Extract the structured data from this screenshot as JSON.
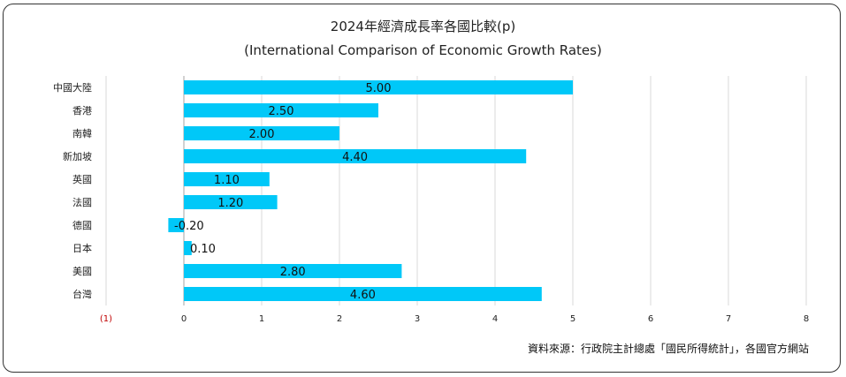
{
  "chart_data": {
    "type": "bar",
    "orientation": "horizontal",
    "title": "2024年經濟成長率各國比較(p)",
    "subtitle": "(International Comparison of Economic Growth Rates)",
    "categories": [
      "中國大陸",
      "香港",
      "南韓",
      "新加坡",
      "英國",
      "法國",
      "德國",
      "日本",
      "美國",
      "台灣"
    ],
    "values": [
      5.0,
      2.5,
      2.0,
      4.4,
      1.1,
      1.2,
      -0.2,
      0.1,
      2.8,
      4.6
    ],
    "value_labels": [
      "5.00",
      "2.50",
      "2.00",
      "4.40",
      "1.10",
      "1.20",
      "-0.20",
      "0.10",
      "2.80",
      "4.60"
    ],
    "xlim": [
      -1,
      8
    ],
    "ticks": [
      {
        "value": -1,
        "label": "(1)"
      },
      {
        "value": 0,
        "label": "0"
      },
      {
        "value": 1,
        "label": "1"
      },
      {
        "value": 2,
        "label": "2"
      },
      {
        "value": 3,
        "label": "3"
      },
      {
        "value": 4,
        "label": "4"
      },
      {
        "value": 5,
        "label": "5"
      },
      {
        "value": 6,
        "label": "6"
      },
      {
        "value": 7,
        "label": "7"
      },
      {
        "value": 8,
        "label": "8"
      }
    ],
    "grid": true,
    "bar_color": "#00c8f8",
    "negative_tick_color": "#c00000"
  },
  "source": "資料來源：行政院主計總處「國民所得統計」，各國官方網站"
}
